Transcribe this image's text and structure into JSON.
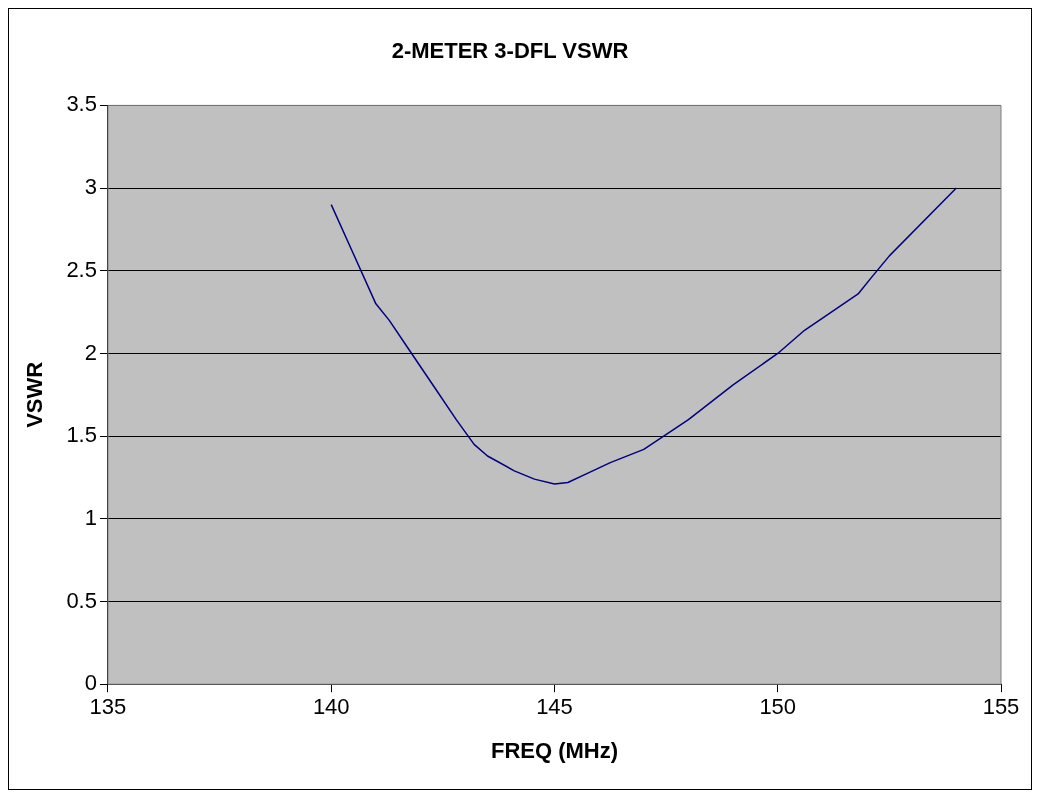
{
  "chart_data": {
    "type": "line",
    "title": "2-METER 3-DFL VSWR",
    "xlabel": "FREQ (MHz)",
    "ylabel": "VSWR",
    "x": [
      140,
      140.5,
      141,
      141.3,
      141.8,
      142.3,
      142.8,
      143.2,
      143.5,
      144.1,
      144.55,
      145,
      145.3,
      145.7,
      146.25,
      147,
      148,
      149,
      150,
      150.6,
      151.8,
      152.1,
      152.5,
      154
    ],
    "series": [
      {
        "color": "#000080",
        "values": [
          2.9,
          2.6,
          2.3,
          2.2,
          2.0,
          1.8,
          1.6,
          1.45,
          1.38,
          1.29,
          1.24,
          1.21,
          1.22,
          1.27,
          1.34,
          1.42,
          1.6,
          1.81,
          2.0,
          2.14,
          2.36,
          2.46,
          2.59,
          3.0
        ]
      }
    ],
    "xlim": [
      135,
      155
    ],
    "xticks": [
      135,
      140,
      145,
      150,
      155
    ],
    "ylim": [
      0,
      3.5
    ],
    "yticks": [
      0,
      0.5,
      1,
      1.5,
      2,
      2.5,
      3,
      3.5
    ],
    "grid": "y",
    "legend": false,
    "marker": "none",
    "line_style": "solid"
  }
}
